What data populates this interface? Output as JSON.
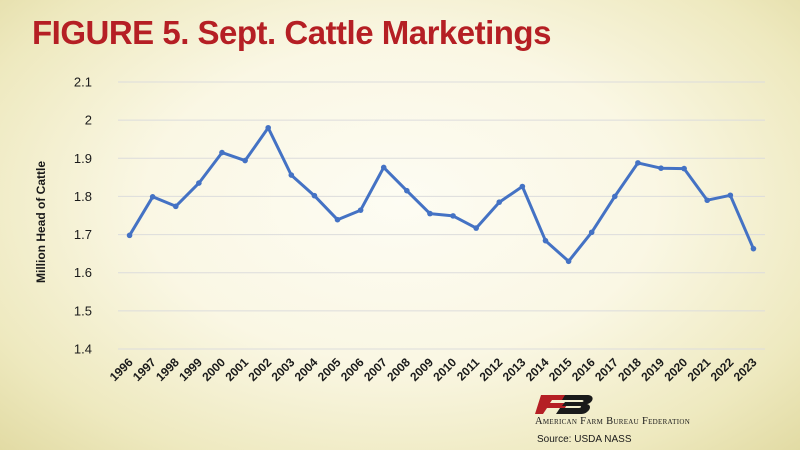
{
  "chart_data": {
    "type": "line",
    "title": "FIGURE 5. Sept. Cattle Marketings",
    "xlabel": "",
    "ylabel": "Million Head of Cattle",
    "ylim": [
      1.4,
      2.1
    ],
    "yticks": [
      "1.4",
      "1.5",
      "1.6",
      "1.7",
      "1.8",
      "1.9",
      "2",
      "2.1"
    ],
    "grid": true,
    "categories": [
      "1996",
      "1997",
      "1998",
      "1999",
      "2000",
      "2001",
      "2002",
      "2003",
      "2004",
      "2005",
      "2006",
      "2007",
      "2008",
      "2009",
      "2010",
      "2011",
      "2012",
      "2013",
      "2014",
      "2015",
      "2016",
      "2017",
      "2018",
      "2019",
      "2020",
      "2021",
      "2022",
      "2023"
    ],
    "series": [
      {
        "values": [
          1.698,
          1.799,
          1.774,
          1.835,
          1.915,
          1.894,
          1.98,
          1.856,
          1.802,
          1.739,
          1.764,
          1.876,
          1.815,
          1.755,
          1.749,
          1.717,
          1.785,
          1.826,
          1.684,
          1.63,
          1.706,
          1.8,
          1.888,
          1.874,
          1.873,
          1.79,
          1.803,
          1.663
        ]
      }
    ],
    "line_color": "#4472c4"
  },
  "branding": {
    "org_name": "American Farm Bureau Federation",
    "org_mark": "FB",
    "source": "Source: USDA NASS"
  }
}
